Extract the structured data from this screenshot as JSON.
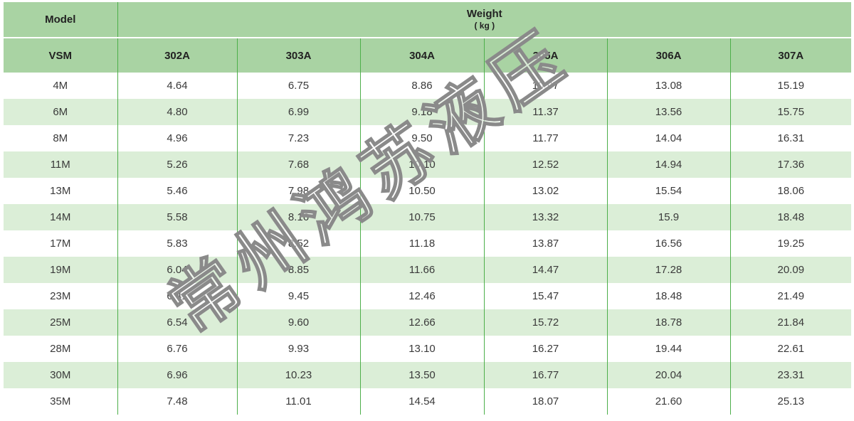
{
  "table": {
    "model_header": "Model",
    "weight_header": "Weight",
    "weight_unit": "( kg )",
    "row_header": "VSM",
    "columns": [
      "302A",
      "303A",
      "304A",
      "305A",
      "306A",
      "307A"
    ],
    "rows": [
      {
        "model": "4M",
        "values": [
          "4.64",
          "6.75",
          "8.86",
          "10.97",
          "13.08",
          "15.19"
        ]
      },
      {
        "model": "6M",
        "values": [
          "4.80",
          "6.99",
          "9.18",
          "11.37",
          "13.56",
          "15.75"
        ]
      },
      {
        "model": "8M",
        "values": [
          "4.96",
          "7.23",
          "9.50",
          "11.77",
          "14.04",
          "16.31"
        ]
      },
      {
        "model": "11M",
        "values": [
          "5.26",
          "7.68",
          "10.10",
          "12.52",
          "14.94",
          "17.36"
        ]
      },
      {
        "model": "13M",
        "values": [
          "5.46",
          "7.98",
          "10.50",
          "13.02",
          "15.54",
          "18.06"
        ]
      },
      {
        "model": "14M",
        "values": [
          "5.58",
          "8.16",
          "10.75",
          "13.32",
          "15.9",
          "18.48"
        ]
      },
      {
        "model": "17M",
        "values": [
          "5.83",
          "8.52",
          "11.18",
          "13.87",
          "16.56",
          "19.25"
        ]
      },
      {
        "model": "19M",
        "values": [
          "6.04",
          "8.85",
          "11.66",
          "14.47",
          "17.28",
          "20.09"
        ]
      },
      {
        "model": "23M",
        "values": [
          "6.41",
          "9.45",
          "12.46",
          "15.47",
          "18.48",
          "21.49"
        ]
      },
      {
        "model": "25M",
        "values": [
          "6.54",
          "9.60",
          "12.66",
          "15.72",
          "18.78",
          "21.84"
        ]
      },
      {
        "model": "28M",
        "values": [
          "6.76",
          "9.93",
          "13.10",
          "16.27",
          "19.44",
          "22.61"
        ]
      },
      {
        "model": "30M",
        "values": [
          "6.96",
          "10.23",
          "13.50",
          "16.77",
          "20.04",
          "23.31"
        ]
      },
      {
        "model": "35M",
        "values": [
          "7.48",
          "11.01",
          "14.54",
          "18.07",
          "21.60",
          "25.13"
        ]
      }
    ]
  },
  "watermark": "常州鸿苏液压",
  "colors": {
    "header_bg": "#a9d3a3",
    "stripe_bg": "#dbeed7",
    "divider": "#4daf4a"
  }
}
